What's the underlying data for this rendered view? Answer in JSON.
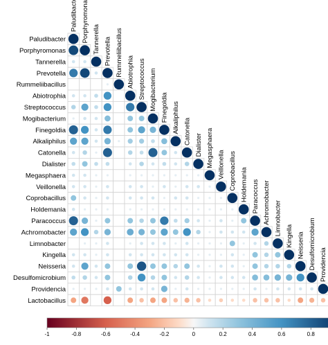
{
  "chart_data": {
    "type": "heatmap",
    "style": "correlation-circles-lower-triangle",
    "variables": [
      "Paludibacter",
      "Porphyromonas",
      "Tannerella",
      "Prevotella",
      "Rummeliibacillus",
      "Abiotrophia",
      "Streptococcus",
      "Mogibacterium",
      "Finegoldia",
      "Alkaliphilus",
      "Catonella",
      "Dialister",
      "Megasphaera",
      "Veillonella",
      "Coprobacillus",
      "Holdemania",
      "Paracoccus",
      "Achromobacter",
      "Limnobacter",
      "Kingella",
      "Neisseria",
      "Desulfomicrobium",
      "Providencia",
      "Lactobacillus"
    ],
    "matrix_lower": [
      [
        1
      ],
      [
        0.9,
        1
      ],
      [
        0.1,
        0.1,
        1
      ],
      [
        0.7,
        0.9,
        0.1,
        1
      ],
      [
        0.0,
        0.0,
        0.0,
        0.05,
        1
      ],
      [
        0.1,
        0.1,
        0.15,
        0.6,
        0.0,
        1
      ],
      [
        0.2,
        0.5,
        0.15,
        0.6,
        0.0,
        0.7,
        1
      ],
      [
        0.05,
        0.1,
        0.1,
        0.35,
        0.0,
        0.3,
        0.3,
        1
      ],
      [
        0.8,
        0.6,
        0.1,
        0.7,
        0.0,
        0.3,
        0.5,
        0.4,
        1
      ],
      [
        0.5,
        0.5,
        0.1,
        0.4,
        0.05,
        0.25,
        0.25,
        0.15,
        0.35,
        1
      ],
      [
        0.1,
        0.2,
        0.05,
        0.8,
        0.0,
        0.2,
        0.15,
        0.8,
        0.3,
        0.1,
        1
      ],
      [
        0.15,
        0.3,
        0.15,
        0.15,
        0.0,
        0.1,
        0.2,
        0.1,
        0.15,
        0.1,
        0.2,
        1
      ],
      [
        0.1,
        0.1,
        0.05,
        0.05,
        0.0,
        0.05,
        0.05,
        0.05,
        0.05,
        0.05,
        0.05,
        0.05,
        1
      ],
      [
        0.1,
        0.1,
        0.05,
        0.1,
        0.0,
        0.1,
        0.1,
        0.05,
        0.1,
        0.05,
        0.1,
        0.1,
        0.05,
        1
      ],
      [
        0.3,
        0.1,
        0.05,
        0.1,
        0.0,
        0.1,
        0.1,
        0.1,
        0.05,
        0.1,
        0.1,
        0.05,
        0.05,
        0.05,
        1
      ],
      [
        0.1,
        0.05,
        0.05,
        0.05,
        0.0,
        0.05,
        0.05,
        0.05,
        0.05,
        0.05,
        0.05,
        0.05,
        0.05,
        0.05,
        0.05,
        1
      ],
      [
        0.8,
        0.4,
        0.05,
        0.3,
        0.0,
        0.3,
        0.2,
        0.3,
        0.7,
        0.15,
        0.25,
        0.1,
        0.05,
        0.1,
        0.05,
        0.3,
        1
      ],
      [
        0.5,
        0.6,
        0.2,
        0.4,
        0.0,
        0.45,
        0.4,
        0.3,
        0.5,
        0.3,
        0.6,
        0.2,
        0.05,
        0.1,
        0.1,
        0.1,
        0.5,
        1
      ],
      [
        0.0,
        0.05,
        0.05,
        0.1,
        0.0,
        0.05,
        0.1,
        0.1,
        0.1,
        0.05,
        0.1,
        0.05,
        0.05,
        0.05,
        0.3,
        0.05,
        0.1,
        0.2,
        1
      ],
      [
        0.1,
        0.1,
        0.05,
        0.1,
        0.0,
        0.1,
        0.1,
        0.1,
        0.1,
        0.1,
        0.1,
        0.05,
        0.05,
        0.05,
        0.1,
        0.05,
        0.3,
        0.2,
        0.3,
        1
      ],
      [
        0.1,
        0.5,
        0.1,
        0.3,
        0.0,
        0.3,
        0.85,
        0.3,
        0.3,
        0.2,
        0.3,
        0.1,
        0.05,
        0.1,
        0.1,
        0.05,
        0.3,
        0.2,
        0.2,
        0.2,
        1
      ],
      [
        0.15,
        0.2,
        0.1,
        0.3,
        0.0,
        0.2,
        0.6,
        0.2,
        0.3,
        0.1,
        0.2,
        0.1,
        0.05,
        0.1,
        0.1,
        0.1,
        0.35,
        0.35,
        0.4,
        0.4,
        0.6,
        1
      ],
      [
        0.05,
        0.05,
        0.05,
        0.1,
        0.3,
        0.1,
        0.1,
        0.1,
        0.4,
        0.05,
        0.1,
        0.05,
        0.05,
        0.05,
        0.05,
        0.05,
        0.1,
        0.05,
        0.1,
        0.1,
        0.1,
        0.1,
        1
      ],
      [
        -0.3,
        -0.5,
        0.0,
        -0.6,
        0.0,
        -0.3,
        -0.2,
        -0.3,
        -0.3,
        -0.2,
        -0.25,
        -0.2,
        -0.1,
        -0.15,
        -0.1,
        -0.1,
        -0.2,
        -0.2,
        -0.2,
        -0.1,
        -0.3,
        -0.25,
        -0.2,
        1
      ]
    ],
    "colorbar_ticks": [
      -1,
      -0.8,
      -0.6,
      -0.4,
      -0.2,
      0,
      0.2,
      0.4,
      0.6,
      0.8,
      1
    ],
    "range": [
      -1,
      1
    ]
  }
}
